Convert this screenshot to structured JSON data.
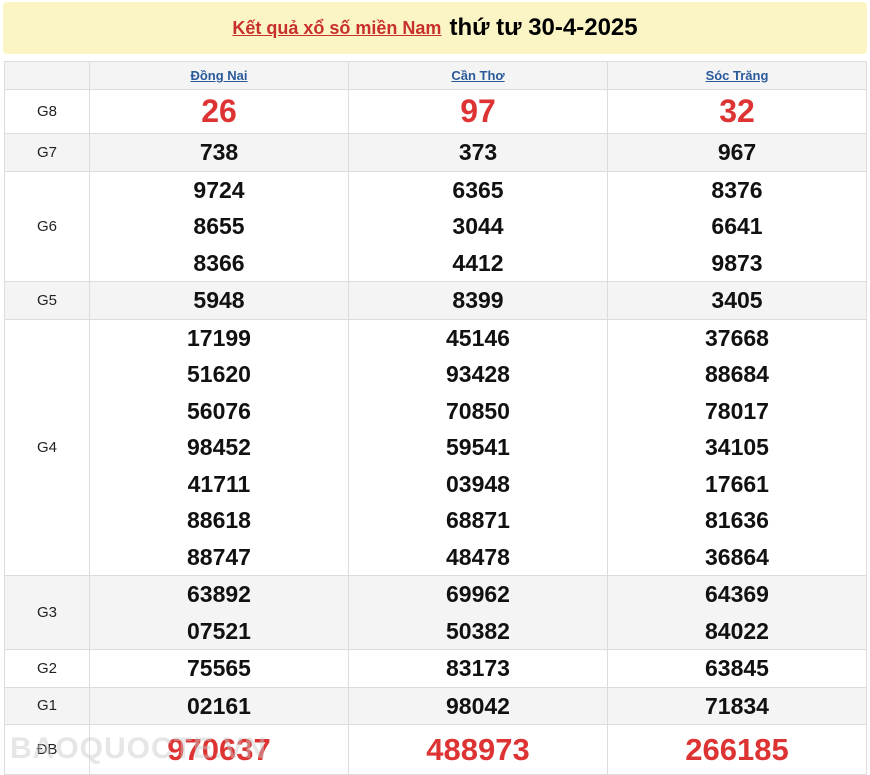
{
  "banner": {
    "link": "Kết quả xổ số miền Nam",
    "date": "thứ tư 30-4-2025"
  },
  "provinces": [
    "Đồng Nai",
    "Cần Thơ",
    "Sóc Trăng"
  ],
  "prizes": [
    {
      "label": "G8",
      "values": [
        [
          "26"
        ],
        [
          "97"
        ],
        [
          "32"
        ]
      ]
    },
    {
      "label": "G7",
      "values": [
        [
          "738"
        ],
        [
          "373"
        ],
        [
          "967"
        ]
      ]
    },
    {
      "label": "G6",
      "values": [
        [
          "9724",
          "8655",
          "8366"
        ],
        [
          "6365",
          "3044",
          "4412"
        ],
        [
          "8376",
          "6641",
          "9873"
        ]
      ]
    },
    {
      "label": "G5",
      "values": [
        [
          "5948"
        ],
        [
          "8399"
        ],
        [
          "3405"
        ]
      ]
    },
    {
      "label": "G4",
      "values": [
        [
          "17199",
          "51620",
          "56076",
          "98452",
          "41711",
          "88618",
          "88747"
        ],
        [
          "45146",
          "93428",
          "70850",
          "59541",
          "03948",
          "68871",
          "48478"
        ],
        [
          "37668",
          "88684",
          "78017",
          "34105",
          "17661",
          "81636",
          "36864"
        ]
      ]
    },
    {
      "label": "G3",
      "values": [
        [
          "63892",
          "07521"
        ],
        [
          "69962",
          "50382"
        ],
        [
          "64369",
          "84022"
        ]
      ]
    },
    {
      "label": "G2",
      "values": [
        [
          "75565"
        ],
        [
          "83173"
        ],
        [
          "63845"
        ]
      ]
    },
    {
      "label": "G1",
      "values": [
        [
          "02161"
        ],
        [
          "98042"
        ],
        [
          "71834"
        ]
      ]
    },
    {
      "label": "ĐB",
      "values": [
        [
          "970637"
        ],
        [
          "488973"
        ],
        [
          "266185"
        ]
      ]
    }
  ],
  "watermark": "BAOQUOCTE.VN",
  "colors": {
    "red": "#dd3333",
    "banner": "#fbf4c4",
    "link": "#2a5a9a"
  }
}
